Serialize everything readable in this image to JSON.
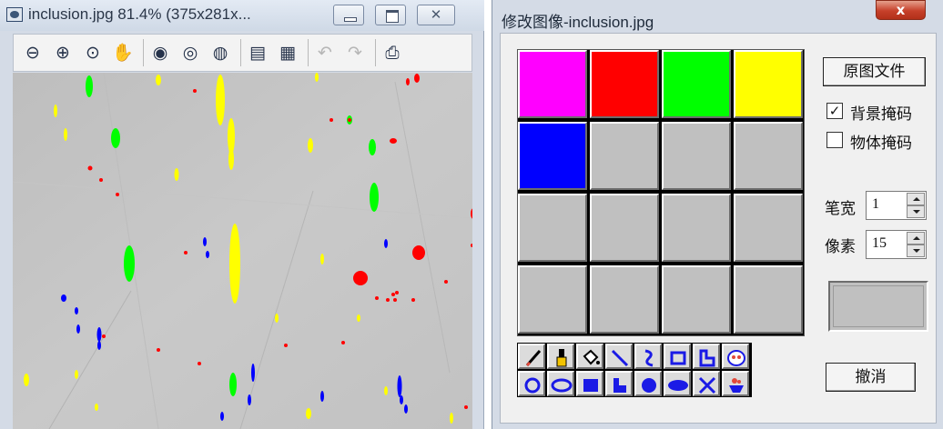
{
  "image_window": {
    "title": "inclusion.jpg 81.4% (375x281x...",
    "toolbar": [
      {
        "id": "zoom-out",
        "icon": "zoom-out-icon",
        "glyph": "⊖"
      },
      {
        "id": "zoom-in",
        "icon": "zoom-in-icon",
        "glyph": "⊕"
      },
      {
        "id": "zoom-fit",
        "icon": "zoom-actual-icon",
        "glyph": "⊙"
      },
      {
        "id": "pan",
        "icon": "hand-icon",
        "glyph": "✋"
      },
      {
        "id": "sep1"
      },
      {
        "id": "zoom-region",
        "icon": "zoom-region-icon",
        "glyph": "◉"
      },
      {
        "id": "zoom-window",
        "icon": "zoom-window-icon",
        "glyph": "◎"
      },
      {
        "id": "zoom-reset",
        "icon": "zoom-reset-icon",
        "glyph": "◍"
      },
      {
        "id": "sep2"
      },
      {
        "id": "layers-a",
        "icon": "layers-icon",
        "glyph": "▤"
      },
      {
        "id": "layers-b",
        "icon": "layers-blue-icon",
        "glyph": "▦"
      },
      {
        "id": "sep3"
      },
      {
        "id": "undo",
        "icon": "undo-icon",
        "glyph": "↶",
        "dim": true
      },
      {
        "id": "redo",
        "icon": "redo-icon",
        "glyph": "↷",
        "dim": true
      },
      {
        "id": "sep4"
      },
      {
        "id": "print",
        "icon": "printer-icon",
        "glyph": "⎙"
      }
    ]
  },
  "edit_dialog": {
    "title": "修改图像-inclusion.jpg",
    "close_glyph": "x",
    "palette": [
      "#ff00ff",
      "#ff0000",
      "#00ff00",
      "#ffff00",
      "#0000ff",
      "#c0c0c0",
      "#c0c0c0",
      "#c0c0c0",
      "#c0c0c0",
      "#c0c0c0",
      "#c0c0c0",
      "#c0c0c0",
      "#c0c0c0",
      "#c0c0c0",
      "#c0c0c0",
      "#c0c0c0"
    ],
    "original_file_label": "原图文件",
    "background_mask": {
      "label": "背景掩码",
      "checked": true,
      "mark": "✓"
    },
    "object_mask": {
      "label": "物体掩码",
      "checked": false,
      "mark": ""
    },
    "pen_width": {
      "label": "笔宽",
      "value": "1"
    },
    "pixel": {
      "label": "像素",
      "value": "15"
    },
    "undo_label": "撤消",
    "tools": [
      {
        "name": "pencil-tool",
        "icon": "pencil-icon"
      },
      {
        "name": "brush-tool",
        "icon": "brush-icon"
      },
      {
        "name": "fill-tool",
        "icon": "paint-bucket-icon"
      },
      {
        "name": "line-tool",
        "icon": "line-icon"
      },
      {
        "name": "curve-tool",
        "icon": "curve-icon"
      },
      {
        "name": "rectangle-tool",
        "icon": "rectangle-outline-icon"
      },
      {
        "name": "polygon-tool",
        "icon": "polygon-outline-icon"
      },
      {
        "name": "stamp-tool",
        "icon": "stamp-icon"
      },
      {
        "name": "circle-tool",
        "icon": "circle-outline-icon"
      },
      {
        "name": "ellipse-tool",
        "icon": "ellipse-outline-icon"
      },
      {
        "name": "filled-rectangle-tool",
        "icon": "filled-rectangle-icon"
      },
      {
        "name": "filled-polygon-tool",
        "icon": "filled-polygon-icon"
      },
      {
        "name": "filled-circle-tool",
        "icon": "filled-circle-icon"
      },
      {
        "name": "filled-ellipse-tool",
        "icon": "filled-ellipse-icon"
      },
      {
        "name": "cross-tool",
        "icon": "cross-icon"
      },
      {
        "name": "erase-tool",
        "icon": "eraser-icon"
      }
    ]
  },
  "colors": {
    "accent_blue": "#1a1ae6",
    "magenta": "#ff00ff",
    "red": "#ff0000",
    "green": "#00ff00",
    "yellow": "#ffff00",
    "blue": "#0000ff",
    "grey": "#c0c0c0"
  }
}
